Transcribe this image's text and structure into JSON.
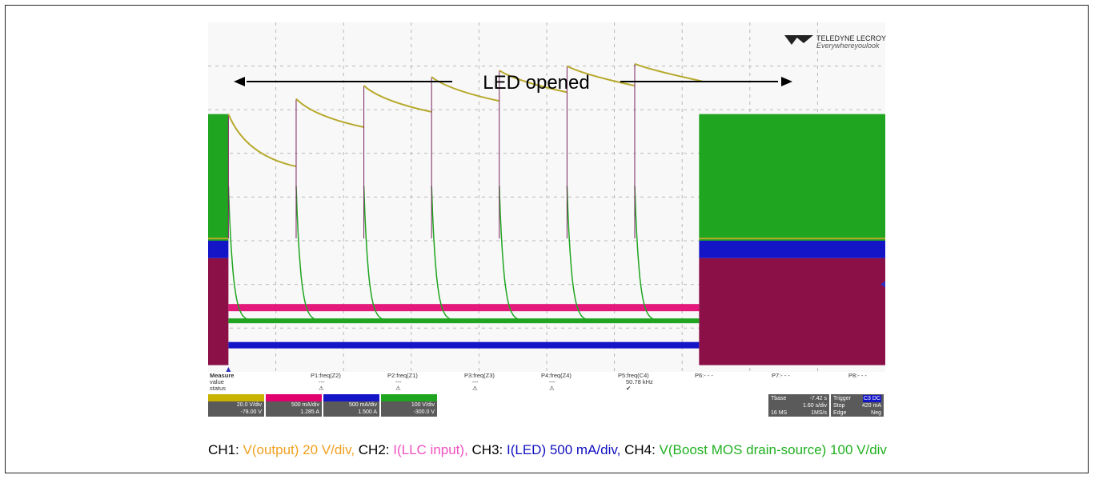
{
  "chart_data": {
    "type": "line",
    "title": "",
    "annotation": "LED opened",
    "logo": {
      "brand": "TELEDYNE LECROY",
      "tagline": "Everywhereyoulook"
    },
    "time_axis": {
      "divisions": 10,
      "timebase": "1.60 s/div",
      "offset": "-7.42 s"
    },
    "channels": [
      {
        "id": "C1",
        "name": "V(output)",
        "scale": "20.0 V/div",
        "offset": "-78.00 V",
        "color": "#b7a92c"
      },
      {
        "id": "C2",
        "name": "I(LLC input)",
        "scale": "500 mA/div",
        "offset": "1.285 A",
        "color": "#e0006e"
      },
      {
        "id": "C3",
        "name": "I(LED)",
        "scale": "500 mA/div",
        "offset": "1.500 A",
        "color": "#1515c8"
      },
      {
        "id": "C4",
        "name": "V(Boost MOS drain-source)",
        "scale": "100 V/div",
        "offset": "-300.0 V",
        "color": "#1fa51f"
      }
    ],
    "c1_waveform": {
      "unit": "div",
      "restart_times_div": [
        0.3,
        1.3,
        2.3,
        3.3,
        4.3,
        5.3,
        6.3
      ],
      "segment_start_div": [
        5.9,
        6.25,
        6.55,
        6.75,
        6.9,
        7.0,
        7.05
      ],
      "segment_end_div": [
        4.7,
        5.6,
        5.95,
        6.2,
        6.4,
        6.55,
        6.65
      ],
      "normal_level_div": 3.05,
      "fault_window_div": [
        0.3,
        7.25
      ]
    },
    "measure": {
      "heading": "Measure",
      "rows": [
        "value",
        "status"
      ],
      "params": [
        {
          "label": "P1:freq(Z2)",
          "value": "---",
          "status": "⚠"
        },
        {
          "label": "P2:freq(Z1)",
          "value": "---",
          "status": "⚠"
        },
        {
          "label": "P3:freq(Z3)",
          "value": "---",
          "status": "⚠"
        },
        {
          "label": "P4:freq(Z4)",
          "value": "---",
          "status": "⚠"
        },
        {
          "label": "P5:freq(C4)",
          "value": "50.78 kHz",
          "status": "✔"
        },
        {
          "label": "P6:- - -",
          "value": "",
          "status": ""
        },
        {
          "label": "P7:- - -",
          "value": "",
          "status": ""
        },
        {
          "label": "P8:- - -",
          "value": "",
          "status": ""
        }
      ]
    },
    "timebase_box": {
      "tbase_label": "Tbase",
      "tbase_value": "-7.42 s",
      "rate": "1.60 s/div",
      "samples": "16 MS",
      "sample_rate": "1MS/s",
      "trigger_label": "Trigger",
      "trigger_source": "C3 DC",
      "mode": "Stop",
      "level": "420 mA",
      "type": "Edge",
      "slope": "Neg"
    }
  },
  "caption": [
    {
      "text": "CH1: ",
      "color": "#000000"
    },
    {
      "text": "V(output) 20 V/div, ",
      "color": "#f0a020"
    },
    {
      "text": "CH2: ",
      "color": "#000000"
    },
    {
      "text": "I(LLC input), ",
      "color": "#f050c0"
    },
    {
      "text": "CH3: ",
      "color": "#000000"
    },
    {
      "text": "I(LED) 500 mA/div, ",
      "color": "#1010c0"
    },
    {
      "text": "CH4: ",
      "color": "#000000"
    },
    {
      "text": "V(Boost MOS drain-source) 100 V/div",
      "color": "#20b020"
    }
  ]
}
